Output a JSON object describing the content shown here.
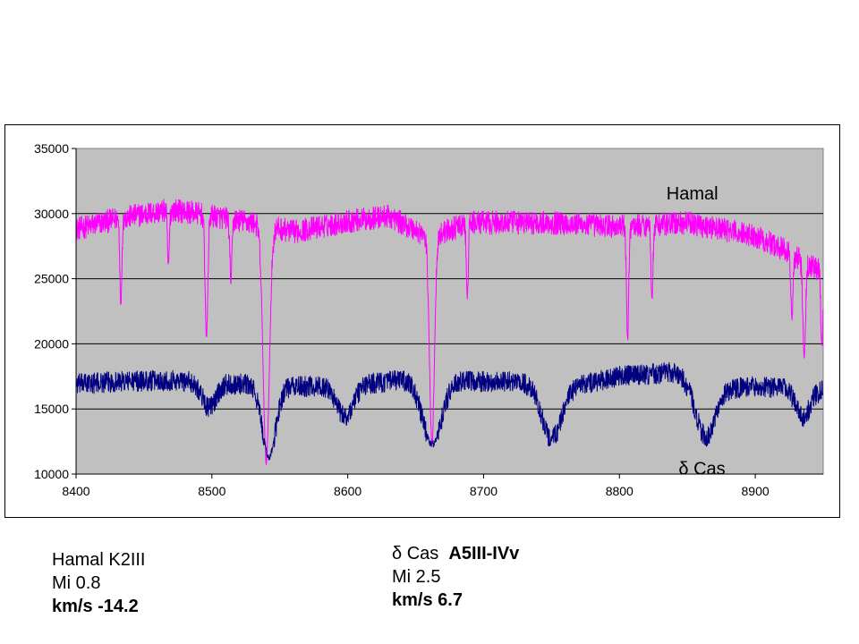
{
  "chart_data": {
    "type": "line",
    "xlim": [
      8400,
      8950
    ],
    "ylim": [
      10000,
      35000
    ],
    "x_ticks": [
      8400,
      8500,
      8600,
      8700,
      8800,
      8900
    ],
    "y_ticks": [
      10000,
      15000,
      20000,
      25000,
      30000,
      35000
    ],
    "grid": "horizontal",
    "plot_background": "#c0c0c0",
    "series": [
      {
        "name": "Hamal",
        "color": "#ff00ff",
        "continuum": [
          [
            8400,
            28800
          ],
          [
            8430,
            29600
          ],
          [
            8470,
            30300
          ],
          [
            8490,
            30000
          ],
          [
            8530,
            29300
          ],
          [
            8560,
            28600
          ],
          [
            8600,
            29400
          ],
          [
            8630,
            29800
          ],
          [
            8660,
            28200
          ],
          [
            8690,
            29300
          ],
          [
            8750,
            29300
          ],
          [
            8800,
            29000
          ],
          [
            8850,
            29300
          ],
          [
            8900,
            28300
          ],
          [
            8920,
            27300
          ],
          [
            8950,
            25500
          ]
        ],
        "absorption_lines": [
          {
            "x": 8433,
            "min": 23000,
            "width": 0.7
          },
          {
            "x": 8468,
            "min": 26000,
            "width": 0.7
          },
          {
            "x": 8496,
            "min": 20500,
            "width": 1.0
          },
          {
            "x": 8514,
            "min": 24800,
            "width": 0.8
          },
          {
            "x": 8540,
            "min": 11000,
            "width": 2.3
          },
          {
            "x": 8662,
            "min": 12400,
            "width": 1.8
          },
          {
            "x": 8688,
            "min": 23500,
            "width": 0.7
          },
          {
            "x": 8806,
            "min": 20300,
            "width": 0.8
          },
          {
            "x": 8824,
            "min": 23500,
            "width": 0.7
          },
          {
            "x": 8927,
            "min": 22000,
            "width": 0.8
          },
          {
            "x": 8936,
            "min": 19200,
            "width": 1.0
          },
          {
            "x": 8949,
            "min": 19800,
            "width": 0.8
          }
        ]
      },
      {
        "name": "δ Cas",
        "color": "#000080",
        "continuum": [
          [
            8400,
            16900
          ],
          [
            8430,
            17100
          ],
          [
            8470,
            17200
          ],
          [
            8500,
            17000
          ],
          [
            8560,
            16700
          ],
          [
            8600,
            16800
          ],
          [
            8640,
            17200
          ],
          [
            8680,
            17100
          ],
          [
            8720,
            17100
          ],
          [
            8760,
            16600
          ],
          [
            8800,
            17500
          ],
          [
            8840,
            17800
          ],
          [
            8870,
            16500
          ],
          [
            8900,
            16700
          ],
          [
            8950,
            16400
          ]
        ],
        "absorption_lines": [
          {
            "x": 8498,
            "min": 15100,
            "width": 5
          },
          {
            "x": 8542,
            "min": 11300,
            "width": 5
          },
          {
            "x": 8598,
            "min": 14400,
            "width": 6
          },
          {
            "x": 8662,
            "min": 12300,
            "width": 7
          },
          {
            "x": 8750,
            "min": 12700,
            "width": 7
          },
          {
            "x": 8863,
            "min": 12900,
            "width": 7
          },
          {
            "x": 8935,
            "min": 14300,
            "width": 5
          }
        ]
      }
    ],
    "annotations": [
      {
        "text": "Hamal",
        "x": 8855,
        "y": 31500
      },
      {
        "text": "δ Cas",
        "x": 8862,
        "y": 11000
      }
    ]
  },
  "captions": {
    "hamal": {
      "name": "Hamal K2III",
      "mi": "Mi 0.8",
      "kms": "km/s -14.2"
    },
    "delta_cas": {
      "name": "δ Cas",
      "type": "A5III-IVv",
      "mi": "Mi 2.5",
      "kms": "km/s 6.7"
    }
  }
}
